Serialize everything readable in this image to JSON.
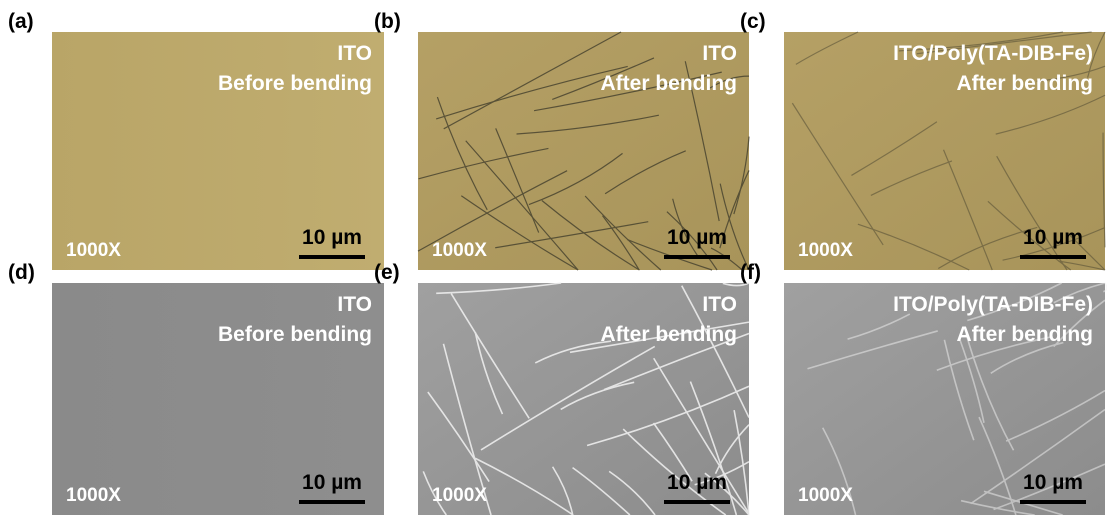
{
  "panels": [
    {
      "label": "(a)",
      "title": [
        "ITO",
        "Before bending"
      ],
      "magnification": "1000X",
      "scale_bar": "10 µm"
    },
    {
      "label": "(b)",
      "title": [
        "ITO",
        "After bending"
      ],
      "magnification": "1000X",
      "scale_bar": "10 µm"
    },
    {
      "label": "(c)",
      "title": [
        "ITO/Poly(TA-DIB-Fe)",
        "After bending"
      ],
      "magnification": "1000X",
      "scale_bar": "10 µm"
    },
    {
      "label": "(d)",
      "title": [
        "ITO",
        "Before bending"
      ],
      "magnification": "1000X",
      "scale_bar": "10 µm"
    },
    {
      "label": "(e)",
      "title": [
        "ITO",
        "After bending"
      ],
      "magnification": "1000X",
      "scale_bar": "10 µm"
    },
    {
      "label": "(f)",
      "title": [
        "ITO/Poly(TA-DIB-Fe)",
        "After bending"
      ],
      "magnification": "1000X",
      "scale_bar": "10 µm"
    }
  ]
}
